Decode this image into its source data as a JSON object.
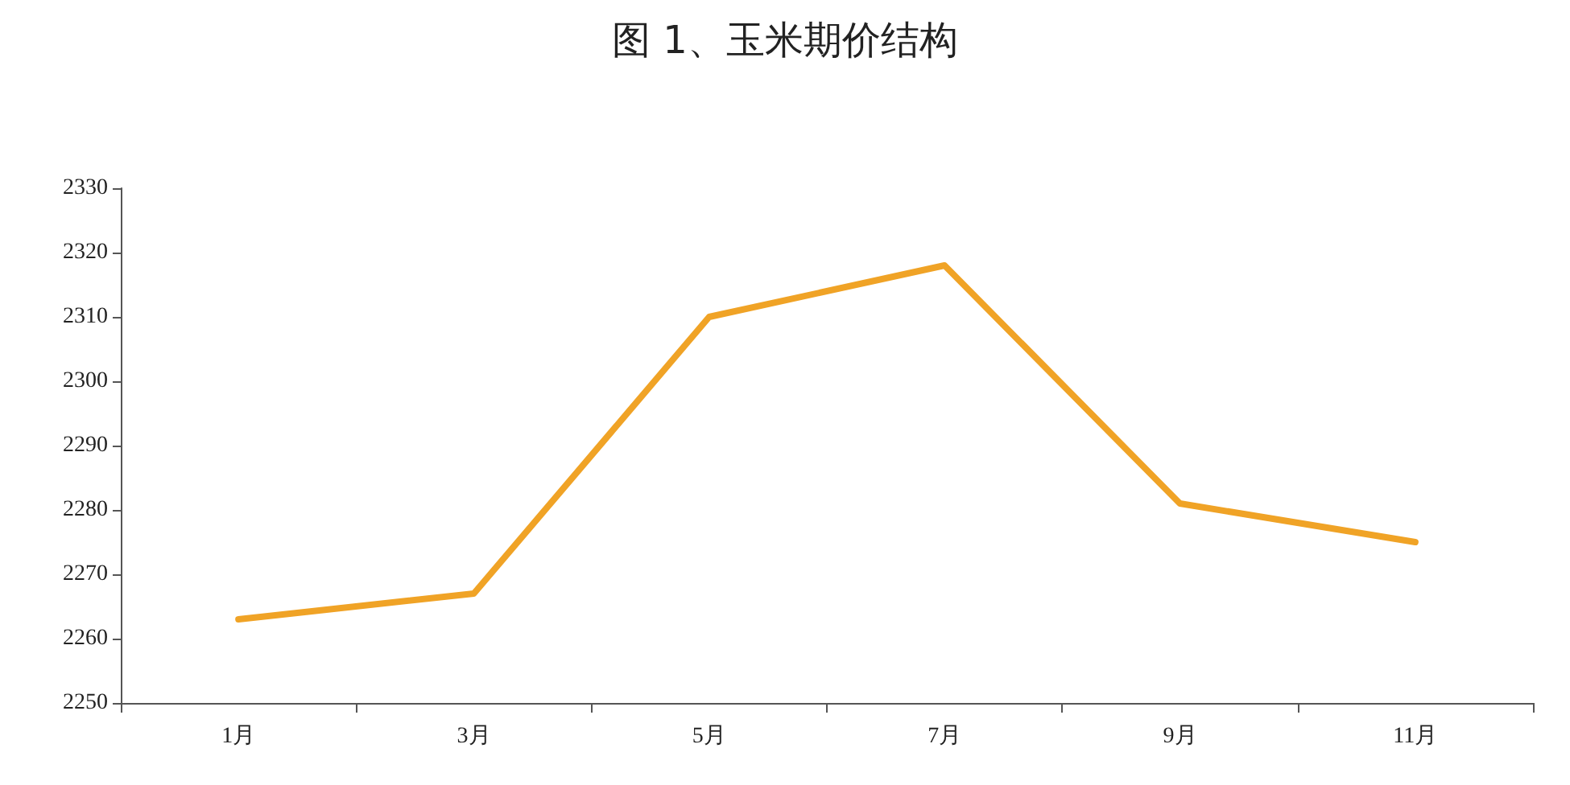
{
  "chart_data": {
    "type": "line",
    "title": "图 1、玉米期价结构",
    "categories": [
      "1月",
      "3月",
      "5月",
      "7月",
      "9月",
      "11月"
    ],
    "series": [
      {
        "color": "#f0a326",
        "values": [
          2263,
          2267,
          2310,
          2318,
          2281,
          2275
        ]
      }
    ],
    "ylim": [
      2250,
      2330
    ],
    "yticks": [
      2250,
      2260,
      2270,
      2280,
      2290,
      2300,
      2310,
      2320,
      2330
    ],
    "grid": false,
    "marker": "none",
    "line_style": "solid"
  }
}
